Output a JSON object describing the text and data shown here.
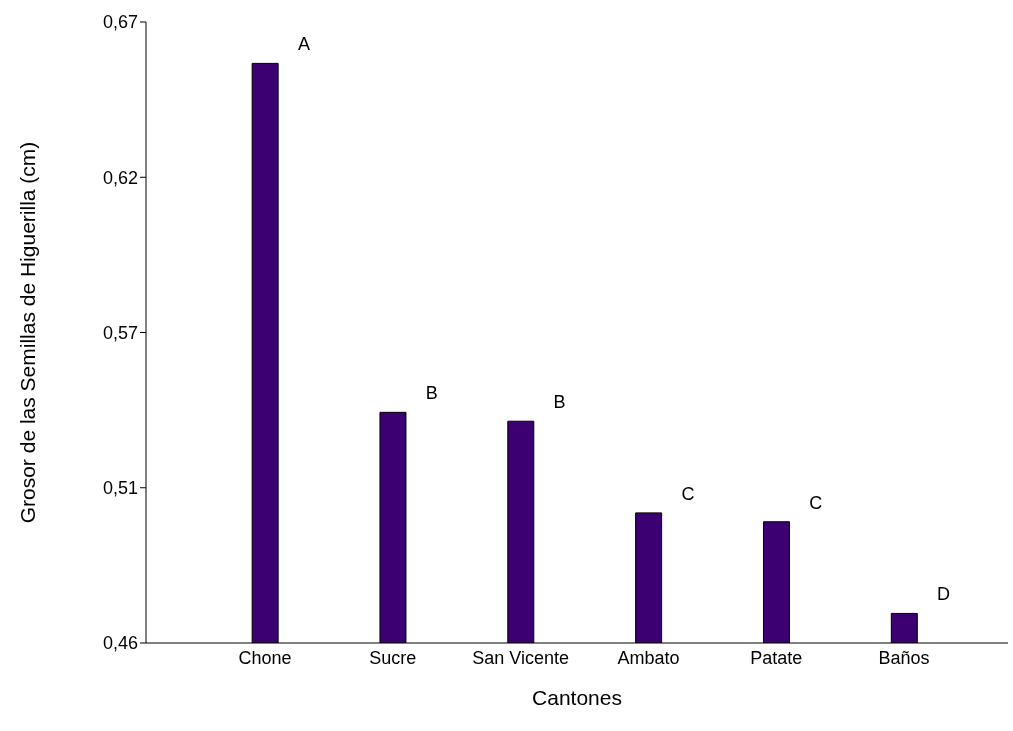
{
  "chart_data": {
    "type": "bar",
    "xlabel": "Cantones",
    "ylabel": "Grosor de las Semillas de Higuerilla (cm)",
    "categories": [
      "Chone",
      "Sucre",
      "San Vicente",
      "Ambato",
      "Patate",
      "Baños"
    ],
    "values": [
      0.656,
      0.538,
      0.535,
      0.504,
      0.501,
      0.47
    ],
    "color": "#3d0072",
    "ylim": [
      0.46,
      0.67
    ],
    "yticks": [
      {
        "value": 0.46,
        "label": "0,46"
      },
      {
        "value": 0.5125,
        "label": "0,51"
      },
      {
        "value": 0.565,
        "label": "0,57"
      },
      {
        "value": 0.6175,
        "label": "0,62"
      },
      {
        "value": 0.67,
        "label": "0,67"
      }
    ],
    "grid": false,
    "legend": false,
    "annotations": [
      {
        "text": "A",
        "x": "Chone",
        "y": 0.656
      },
      {
        "text": "B",
        "x": "Sucre",
        "y": 0.538
      },
      {
        "text": "B",
        "x": "San Vicente",
        "y": 0.535
      },
      {
        "text": "C",
        "x": "Ambato",
        "y": 0.504
      },
      {
        "text": "C",
        "x": "Patate",
        "y": 0.501
      },
      {
        "text": "D",
        "x": "Baños",
        "y": 0.47
      }
    ]
  }
}
